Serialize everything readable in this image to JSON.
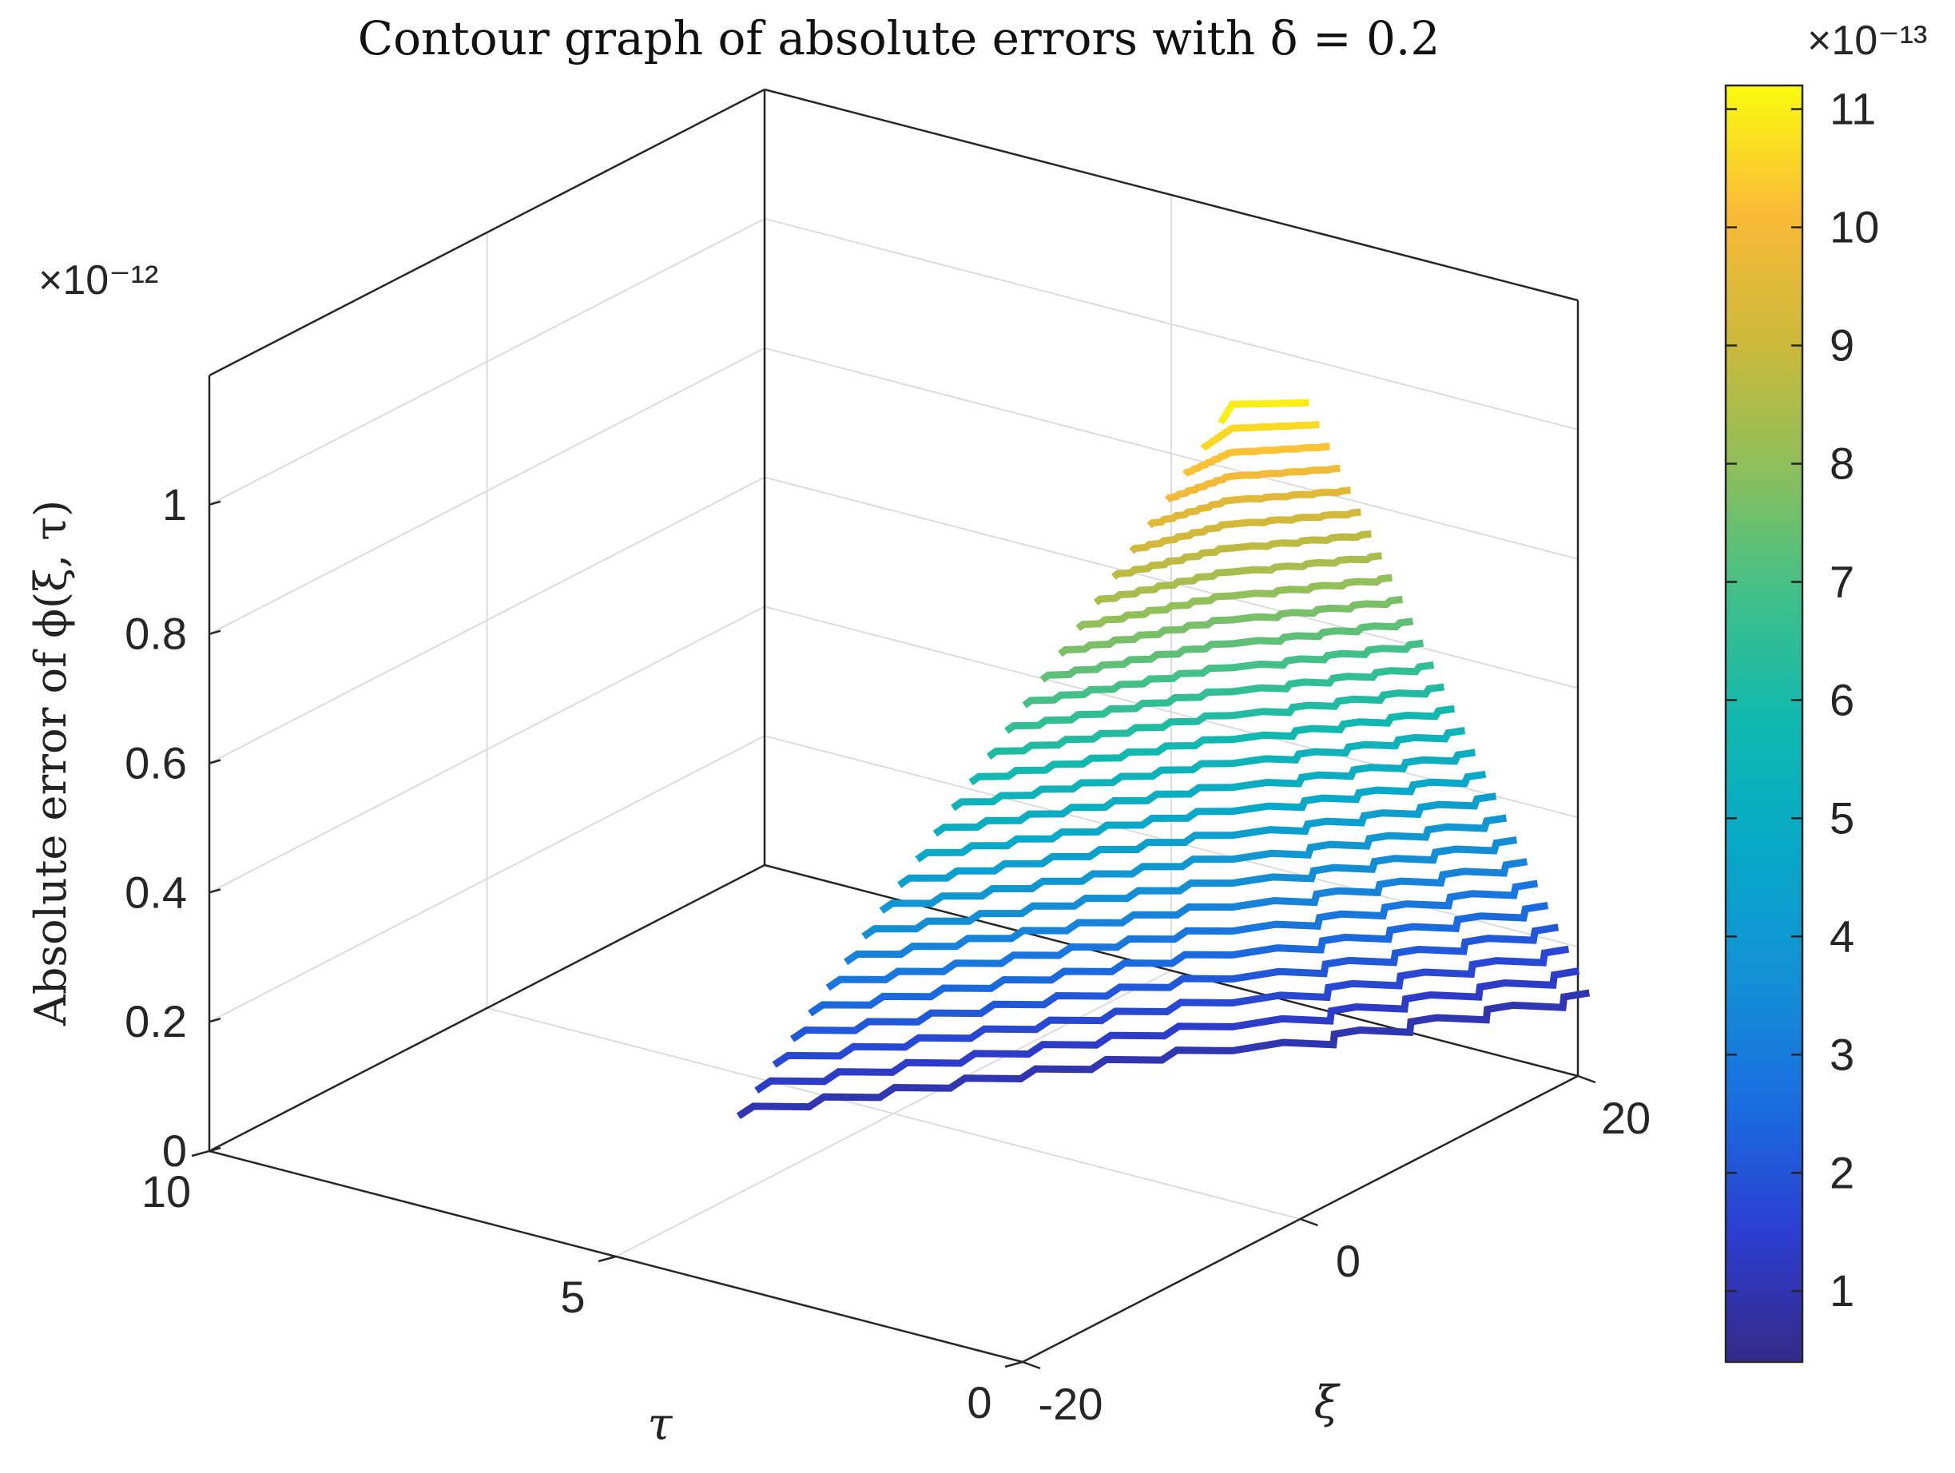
{
  "chart_data": {
    "type": "contour3",
    "title": "Contour graph of absolute errors with δ = 0.2",
    "xlabel": "ξ",
    "ylabel": "τ",
    "zlabel": "Absolute error of ϕ(ξ, τ)",
    "z_exponent_label": "×10⁻¹²",
    "colorbar_exponent_label": "×10⁻¹³",
    "xlim": [
      -20,
      20
    ],
    "ylim": [
      0,
      10
    ],
    "zlim": [
      0,
      1.2
    ],
    "x_ticks": [
      "-20",
      "0",
      "20"
    ],
    "y_ticks": [
      "0",
      "5",
      "10"
    ],
    "z_ticks": [
      "0",
      "0.2",
      "0.4",
      "0.6",
      "0.8",
      "1"
    ],
    "colorbar": {
      "colormap": "parula",
      "limits": [
        0.4,
        11.2
      ],
      "ticks": [
        "1",
        "2",
        "3",
        "4",
        "5",
        "6",
        "7",
        "8",
        "9",
        "10",
        "11"
      ]
    },
    "contours": {
      "n_levels": 28,
      "level_min": 0.1,
      "level_max": 1.1,
      "unit": "×10⁻¹²"
    },
    "grid": true,
    "view": "3d-box"
  }
}
